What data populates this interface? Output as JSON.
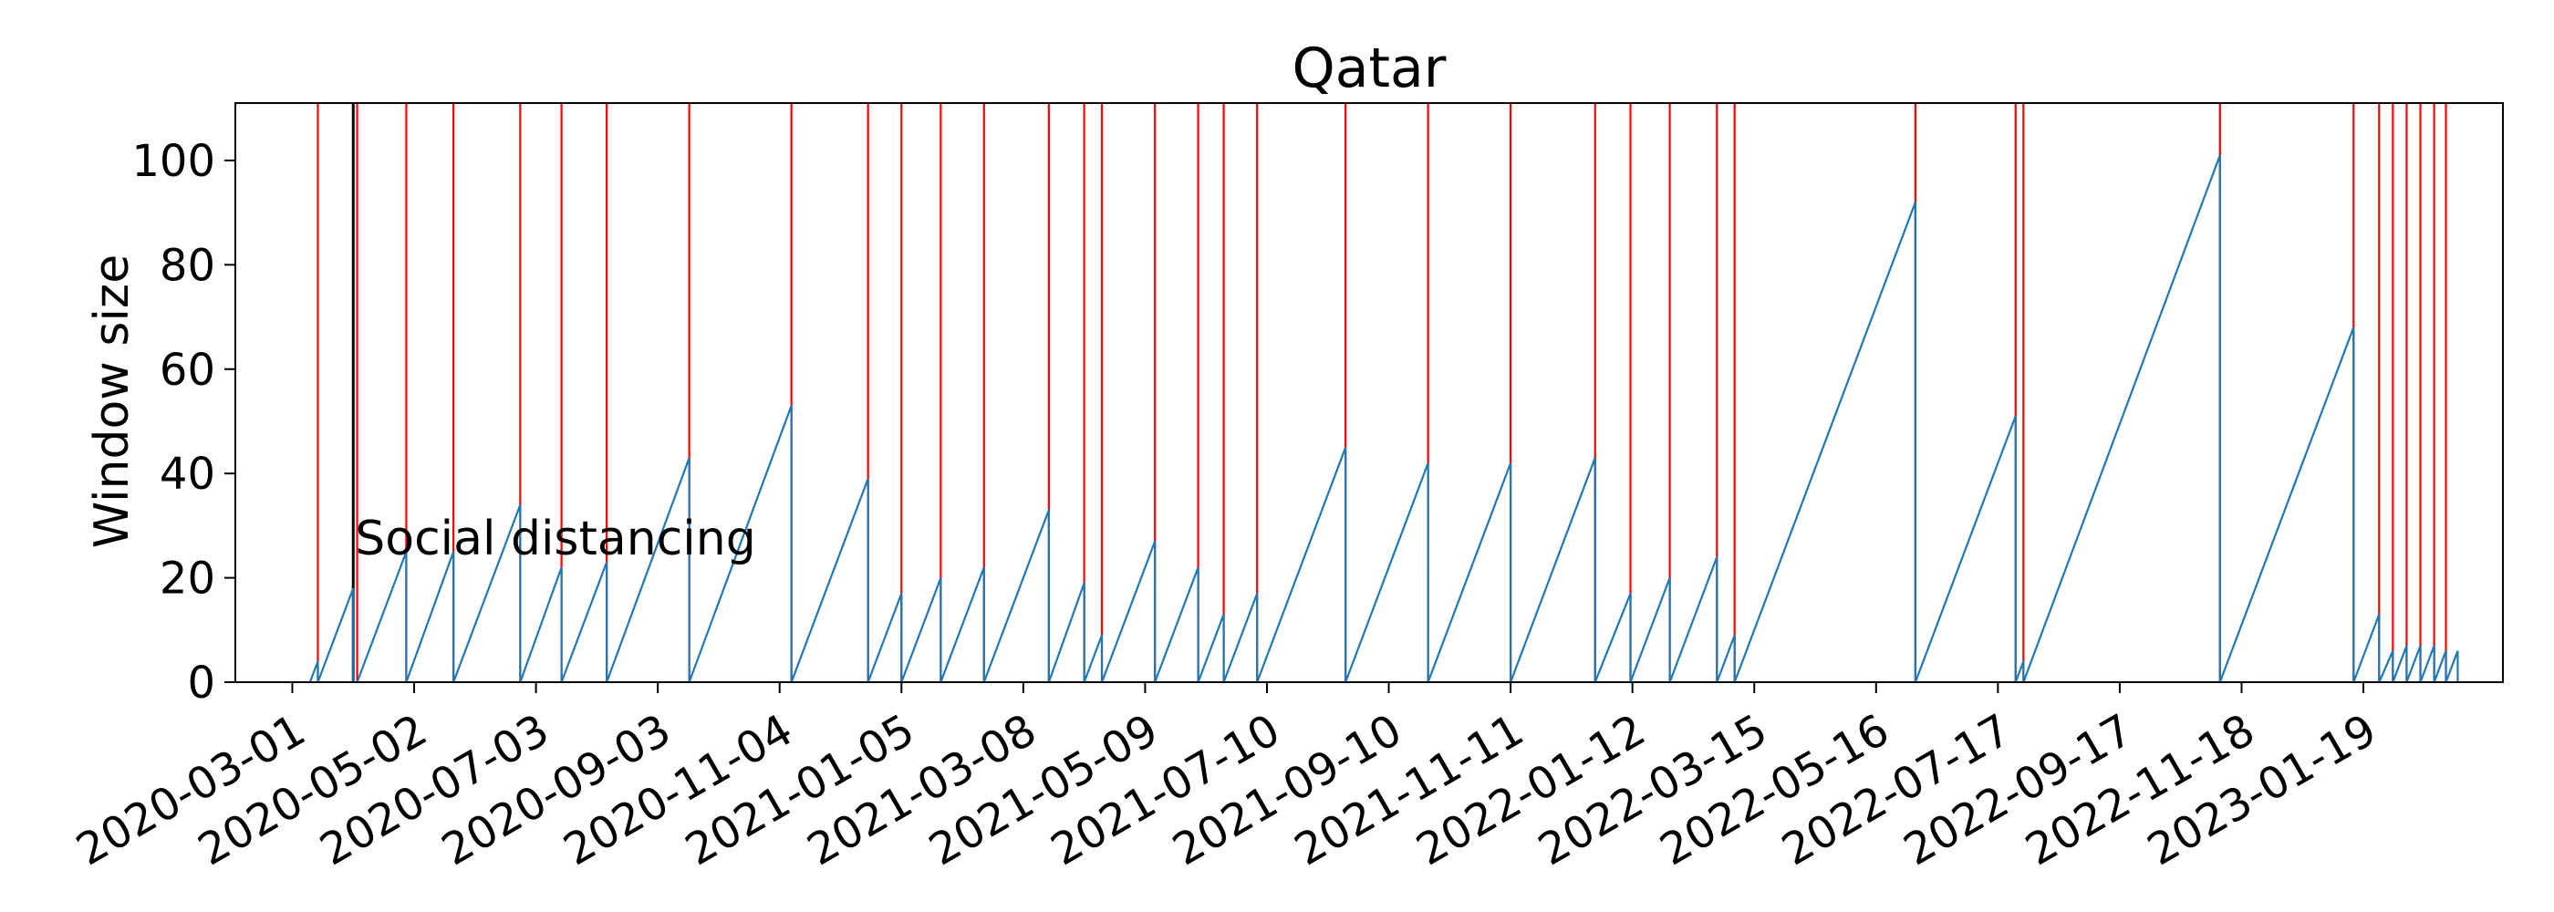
{
  "chart_data": {
    "type": "line",
    "title": "Qatar",
    "xlabel": "",
    "ylabel": "Window size",
    "xlim": [
      "2020-02-01",
      "2023-03-31"
    ],
    "ylim": [
      0,
      111
    ],
    "grid": false,
    "legend": "none",
    "x_tick_labels": [
      "2020-03-01",
      "2020-05-02",
      "2020-07-03",
      "2020-09-03",
      "2020-11-04",
      "2021-01-05",
      "2021-03-08",
      "2021-05-09",
      "2021-07-10",
      "2021-09-10",
      "2021-11-11",
      "2022-01-12",
      "2022-03-15",
      "2022-05-16",
      "2022-07-17",
      "2022-09-17",
      "2022-11-18",
      "2023-01-19"
    ],
    "y_ticks": [
      0,
      20,
      40,
      60,
      80,
      100
    ],
    "series": [
      {
        "type": "sawtooth",
        "color": "#1f77b4",
        "segments": [
          {
            "start": "2020-03-10",
            "end": "2020-03-14",
            "peak": 4
          },
          {
            "start": "2020-03-14",
            "end": "2020-04-01",
            "peak": 18
          },
          {
            "start": "2020-04-03",
            "end": "2020-04-28",
            "peak": 25
          },
          {
            "start": "2020-04-28",
            "end": "2020-05-22",
            "peak": 25
          },
          {
            "start": "2020-05-22",
            "end": "2020-06-25",
            "peak": 34
          },
          {
            "start": "2020-06-25",
            "end": "2020-07-16",
            "peak": 22
          },
          {
            "start": "2020-07-16",
            "end": "2020-08-08",
            "peak": 23
          },
          {
            "start": "2020-08-08",
            "end": "2020-09-19",
            "peak": 43
          },
          {
            "start": "2020-09-19",
            "end": "2020-11-10",
            "peak": 53
          },
          {
            "start": "2020-11-10",
            "end": "2020-12-19",
            "peak": 39
          },
          {
            "start": "2020-12-19",
            "end": "2021-01-05",
            "peak": 17
          },
          {
            "start": "2021-01-05",
            "end": "2021-01-25",
            "peak": 20
          },
          {
            "start": "2021-01-25",
            "end": "2021-02-16",
            "peak": 22
          },
          {
            "start": "2021-02-16",
            "end": "2021-03-21",
            "peak": 33
          },
          {
            "start": "2021-03-21",
            "end": "2021-04-08",
            "peak": 19
          },
          {
            "start": "2021-04-08",
            "end": "2021-04-17",
            "peak": 9
          },
          {
            "start": "2021-04-17",
            "end": "2021-05-14",
            "peak": 27
          },
          {
            "start": "2021-05-14",
            "end": "2021-06-05",
            "peak": 22
          },
          {
            "start": "2021-06-05",
            "end": "2021-06-18",
            "peak": 13
          },
          {
            "start": "2021-06-18",
            "end": "2021-07-05",
            "peak": 17
          },
          {
            "start": "2021-07-05",
            "end": "2021-08-19",
            "peak": 45
          },
          {
            "start": "2021-08-19",
            "end": "2021-09-30",
            "peak": 42
          },
          {
            "start": "2021-09-30",
            "end": "2021-11-11",
            "peak": 42
          },
          {
            "start": "2021-11-11",
            "end": "2021-12-24",
            "peak": 43
          },
          {
            "start": "2021-12-24",
            "end": "2022-01-11",
            "peak": 17
          },
          {
            "start": "2022-01-11",
            "end": "2022-01-31",
            "peak": 20
          },
          {
            "start": "2022-01-31",
            "end": "2022-02-24",
            "peak": 24
          },
          {
            "start": "2022-02-24",
            "end": "2022-03-05",
            "peak": 9
          },
          {
            "start": "2022-03-05",
            "end": "2022-06-05",
            "peak": 92
          },
          {
            "start": "2022-06-05",
            "end": "2022-07-26",
            "peak": 51
          },
          {
            "start": "2022-07-26",
            "end": "2022-07-30",
            "peak": 4
          },
          {
            "start": "2022-07-30",
            "end": "2022-11-07",
            "peak": 101
          },
          {
            "start": "2022-11-07",
            "end": "2023-01-14",
            "peak": 68
          },
          {
            "start": "2023-01-14",
            "end": "2023-01-27",
            "peak": 13
          },
          {
            "start": "2023-01-27",
            "end": "2023-02-03",
            "peak": 6
          },
          {
            "start": "2023-02-03",
            "end": "2023-02-10",
            "peak": 7
          },
          {
            "start": "2023-02-10",
            "end": "2023-02-17",
            "peak": 7
          },
          {
            "start": "2023-02-17",
            "end": "2023-02-24",
            "peak": 7
          },
          {
            "start": "2023-02-24",
            "end": "2023-03-02",
            "peak": 6
          },
          {
            "start": "2023-03-02",
            "end": "2023-03-08",
            "peak": 6
          }
        ]
      }
    ],
    "red_vertical_lines": {
      "color": "#ff0000",
      "x": [
        "2020-03-14",
        "2020-04-03",
        "2020-04-28",
        "2020-05-22",
        "2020-06-25",
        "2020-07-16",
        "2020-08-08",
        "2020-09-19",
        "2020-11-10",
        "2020-12-19",
        "2021-01-05",
        "2021-01-25",
        "2021-02-16",
        "2021-03-21",
        "2021-04-08",
        "2021-04-17",
        "2021-05-14",
        "2021-06-05",
        "2021-06-18",
        "2021-07-05",
        "2021-08-19",
        "2021-09-30",
        "2021-11-11",
        "2021-12-24",
        "2022-01-11",
        "2022-01-31",
        "2022-02-24",
        "2022-03-05",
        "2022-06-05",
        "2022-07-26",
        "2022-07-30",
        "2022-11-07",
        "2023-01-14",
        "2023-01-27",
        "2023-02-03",
        "2023-02-10",
        "2023-02-17",
        "2023-02-24",
        "2023-03-02"
      ]
    },
    "annotations": [
      {
        "text": "Social distancing",
        "x": "2020-04-01",
        "color": "#000000"
      }
    ]
  }
}
